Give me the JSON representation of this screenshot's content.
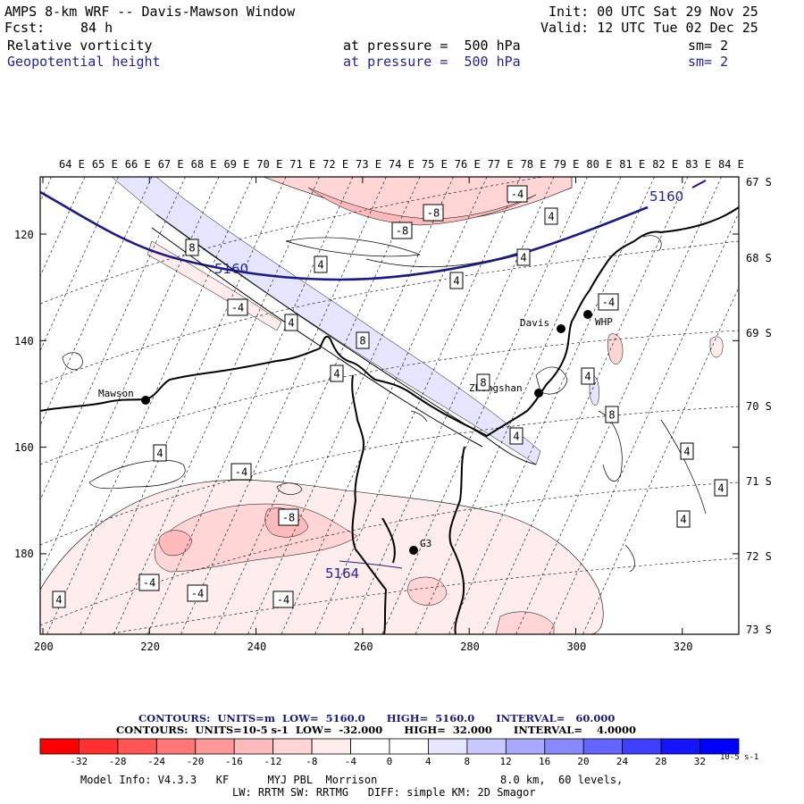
{
  "header": {
    "model_title": "AMPS 8-km WRF -- Davis-Mawson Window",
    "forecast_label": "Fcst:",
    "forecast_hours": "84 h",
    "init_label": "Init: 00 UTC Sat 29 Nov 25",
    "valid_label": "Valid: 12 UTC Tue 02 Dec 25",
    "fields": [
      {
        "name": "Relative vorticity",
        "level": "at pressure =  500 hPa",
        "smooth": "sm= 2",
        "color": "#000000"
      },
      {
        "name": "Geopotential height",
        "level": "at pressure =  500 hPa",
        "smooth": "sm= 2",
        "color": "#22229a"
      }
    ]
  },
  "map": {
    "top_longitudes": [
      "64 E",
      "65 E",
      "66 E",
      "67 E",
      "68 E",
      "69 E",
      "70 E",
      "71 E",
      "72 E",
      "73 E",
      "74 E",
      "75 E",
      "76 E",
      "77 E",
      "78 E",
      "79 E",
      "80 E",
      "81 E",
      "82 E",
      "83 E",
      "84 E"
    ],
    "right_latitudes": [
      "67 S",
      "68 S",
      "69 S",
      "70 S",
      "71 S",
      "72 S",
      "73 S"
    ],
    "left_grid_ticks": [
      "120",
      "140",
      "160",
      "180"
    ],
    "bottom_grid_ticks": [
      "200",
      "220",
      "240",
      "260",
      "280",
      "300",
      "320"
    ],
    "stations": [
      {
        "name": "Mawson"
      },
      {
        "name": "Davis"
      },
      {
        "name": "WHP"
      },
      {
        "name": "Zhongshan"
      },
      {
        "name": "G3"
      }
    ],
    "height_labels": [
      "5160",
      "5160",
      "5164"
    ],
    "vorticity_labels": [
      "-4",
      "-8",
      "-8",
      "4",
      "4",
      "4",
      "4",
      "8",
      "-4",
      "4",
      "8",
      "-4",
      "4",
      "8",
      "4",
      "8",
      "4",
      "4",
      "4",
      "-4",
      "-8",
      "4",
      "-4",
      "-4",
      "-4",
      "4",
      "4"
    ],
    "colors": {
      "coast": "#000000",
      "height_contour": "#1a1a8c",
      "grid": "#000000"
    }
  },
  "contour_info": {
    "line1": "CONTOURS:  UNITS=m  LOW=  5160.0      HIGH=  5160.0      INTERVAL=   60.000",
    "line2": "CONTOURS:  UNITS=10-5 s-1  LOW=  -32.000      HIGH=  32.000      INTERVAL=    4.0000"
  },
  "colorbar": {
    "labels": [
      "-32",
      "-28",
      "-24",
      "-20",
      "-16",
      "-12",
      "-8",
      "-4",
      "0",
      "4",
      "8",
      "12",
      "16",
      "20",
      "24",
      "28",
      "32"
    ],
    "units": "10-5 s-1",
    "colors": [
      "#ff0000",
      "#ff3030",
      "#ff5555",
      "#ff7777",
      "#ff9999",
      "#ffbbbb",
      "#ffd5d5",
      "#ffecec",
      "#ffffff",
      "#ffffff",
      "#e5e5ff",
      "#c9c9ff",
      "#a8a8ff",
      "#8888ff",
      "#6666ff",
      "#3f3fff",
      "#1414ff",
      "#0000ff"
    ]
  },
  "footer": {
    "line1_left": "Model Info: V4.3.3   KF      MYJ PBL  Morrison",
    "line1_right": "8.0 km,  60 levels,",
    "line2": "LW: RRTM SW: RRTMG   DIFF: simple KM: 2D Smagor"
  }
}
